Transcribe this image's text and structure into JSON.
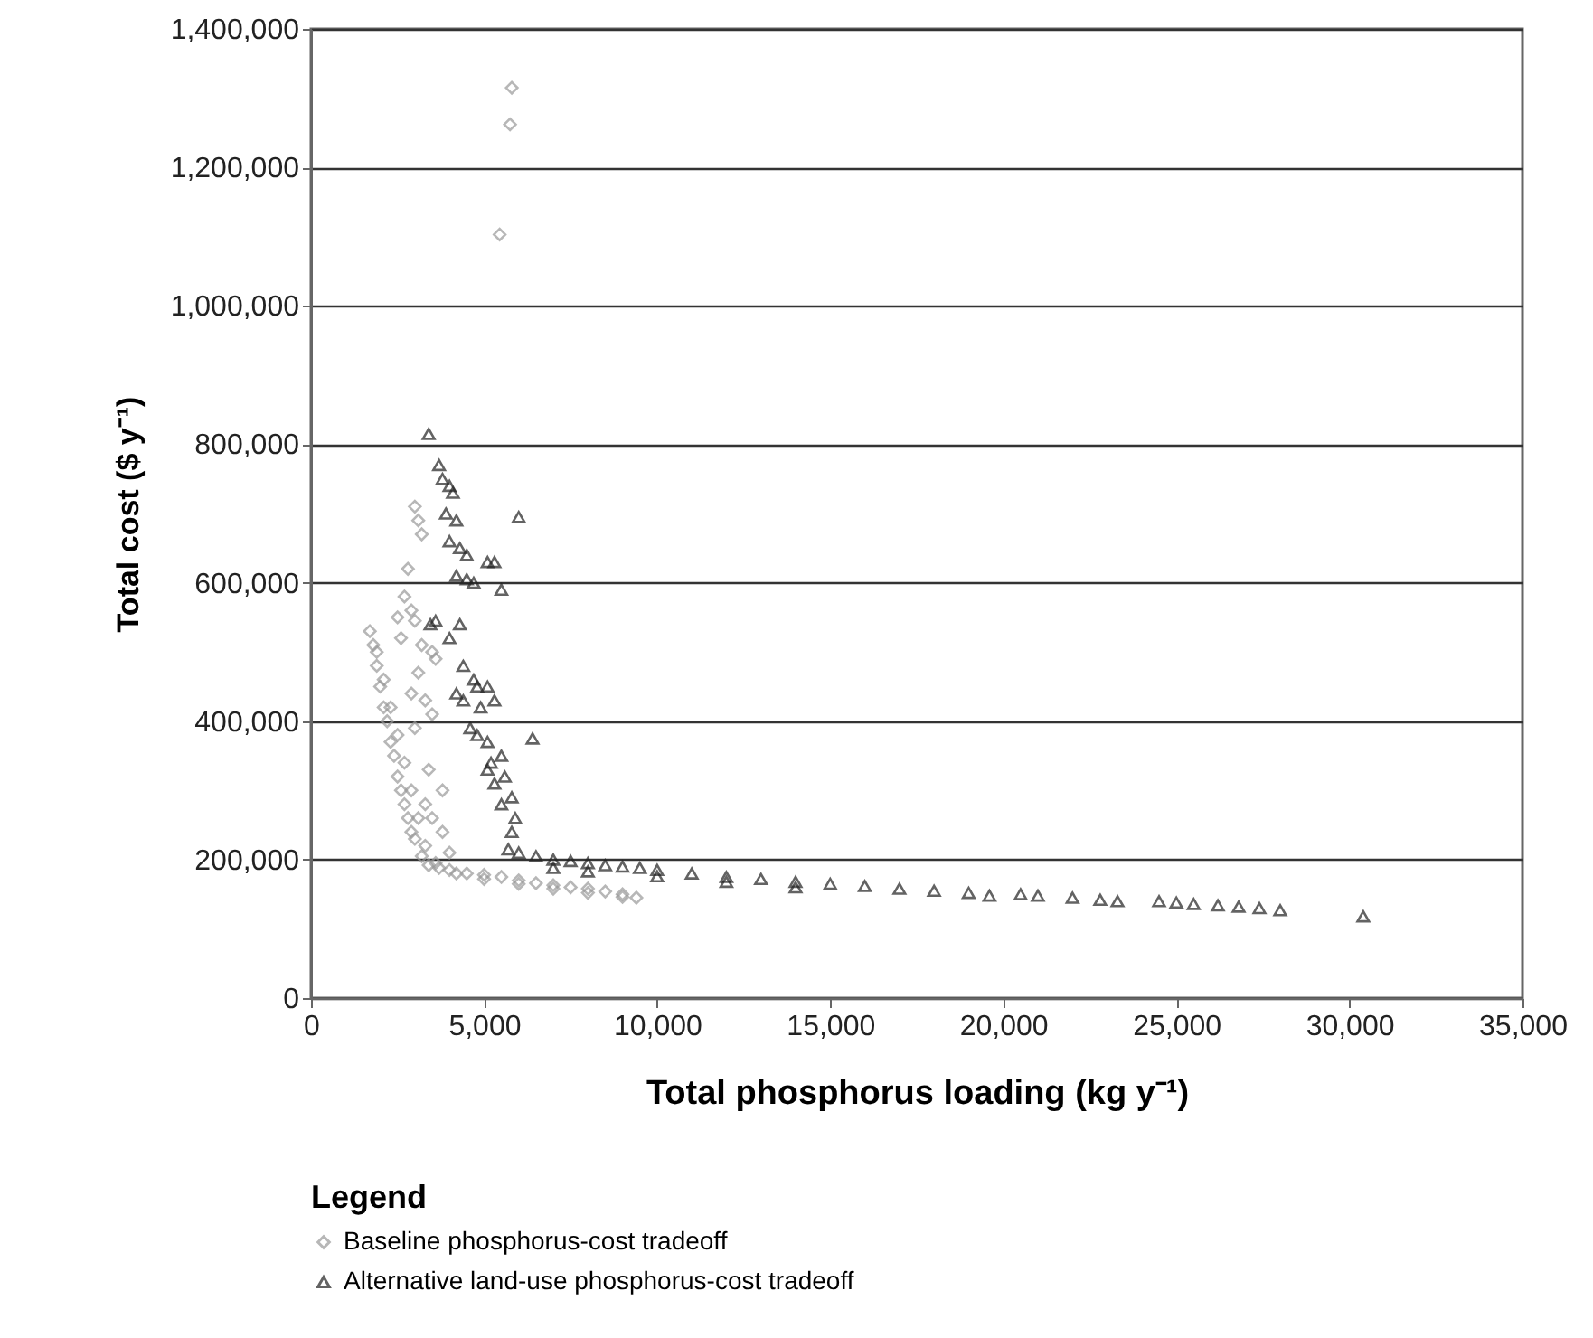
{
  "chart_data": {
    "type": "scatter",
    "xlabel": "Total phosphorus loading (kg y⁻¹)",
    "ylabel": "Total cost ($ y⁻¹)",
    "legend_title": "Legend",
    "legend": "bottom",
    "grid": "y",
    "xlim": [
      0,
      35000
    ],
    "xticks": [
      0,
      {
        "value": 5000,
        "label": "5,000"
      },
      {
        "value": 10000,
        "label": "10,000"
      },
      {
        "value": 15000,
        "label": "15,000"
      },
      {
        "value": 20000,
        "label": "20,000"
      },
      {
        "value": 25000,
        "label": "25,000"
      },
      {
        "value": 30000,
        "label": "30,000"
      },
      {
        "value": 35000,
        "label": "35,000"
      }
    ],
    "ylim": [
      0,
      1400000
    ],
    "yticks": [
      0,
      {
        "value": 200000,
        "label": "200,000"
      },
      {
        "value": 400000,
        "label": "400,000"
      },
      {
        "value": 600000,
        "label": "600,000"
      },
      {
        "value": 800000,
        "label": "800,000"
      },
      {
        "value": 1000000,
        "label": "1,000,000"
      },
      {
        "value": 1200000,
        "label": "1,200,000"
      },
      {
        "value": 1400000,
        "label": "1,400,000"
      }
    ],
    "series": [
      {
        "name": "Baseline phosphorus-cost tradeoff",
        "color": "#999999",
        "marker": "diamond",
        "x": [
          5800,
          5750,
          5450,
          1700,
          1800,
          1900,
          2000,
          2100,
          2200,
          2300,
          2400,
          2500,
          2600,
          2700,
          2800,
          2900,
          3000,
          3200,
          3400,
          3700,
          4000,
          4500,
          5000,
          5500,
          6000,
          6500,
          7000,
          7500,
          8000,
          8500,
          9000,
          9400,
          1900,
          2100,
          2300,
          2500,
          2700,
          2900,
          3100,
          3300,
          3600,
          4200,
          5000,
          6000,
          7000,
          8000,
          9000,
          3000,
          3100,
          3200,
          2800,
          2700,
          2900,
          2500,
          3000,
          2600,
          3200,
          3500,
          3600,
          3100,
          2900,
          3300,
          3500,
          3000,
          3400,
          3800,
          3300,
          3500,
          3800,
          4000
        ],
        "values": [
          1315000,
          1262000,
          1103000,
          530000,
          510000,
          480000,
          450000,
          420000,
          400000,
          370000,
          350000,
          320000,
          300000,
          280000,
          260000,
          240000,
          230000,
          205000,
          192000,
          188000,
          185000,
          180000,
          178000,
          175000,
          170000,
          166000,
          163000,
          160000,
          158000,
          154000,
          150000,
          145000,
          500000,
          460000,
          420000,
          380000,
          340000,
          300000,
          260000,
          220000,
          195000,
          180000,
          172000,
          165000,
          158000,
          152000,
          146000,
          710000,
          690000,
          670000,
          620000,
          580000,
          560000,
          550000,
          545000,
          520000,
          510000,
          500000,
          490000,
          470000,
          440000,
          430000,
          410000,
          390000,
          330000,
          300000,
          280000,
          260000,
          240000,
          210000
        ]
      },
      {
        "name": "Alternative land-use phosphorus-cost tradeoff",
        "color": "#222222",
        "marker": "triangle",
        "x": [
          3400,
          3700,
          3800,
          4000,
          4100,
          3900,
          4200,
          4000,
          4300,
          4500,
          6000,
          4200,
          4500,
          4700,
          5100,
          5300,
          5500,
          3600,
          3450,
          4300,
          4000,
          4700,
          4800,
          5100,
          4400,
          4200,
          4400,
          4900,
          5300,
          6400,
          4600,
          4800,
          5100,
          5200,
          5500,
          5100,
          5600,
          5300,
          5800,
          5500,
          5900,
          5800,
          5700,
          6000,
          6500,
          7000,
          7500,
          8000,
          8500,
          9000,
          9500,
          10000,
          11000,
          12000,
          13000,
          14000,
          15000,
          16000,
          17000,
          18000,
          19000,
          19600,
          20500,
          21000,
          22000,
          22800,
          23300,
          24500,
          25000,
          25500,
          26200,
          26800,
          27400,
          28000,
          30400,
          7000,
          8000,
          10000,
          12000,
          14000
        ],
        "values": [
          815000,
          770000,
          750000,
          740000,
          730000,
          700000,
          690000,
          660000,
          650000,
          640000,
          695000,
          610000,
          605000,
          600000,
          630000,
          630000,
          590000,
          545000,
          540000,
          540000,
          520000,
          460000,
          450000,
          450000,
          480000,
          440000,
          430000,
          420000,
          430000,
          375000,
          390000,
          380000,
          370000,
          340000,
          350000,
          330000,
          320000,
          310000,
          290000,
          280000,
          260000,
          240000,
          215000,
          210000,
          205000,
          200000,
          198000,
          195000,
          192000,
          190000,
          188000,
          185000,
          180000,
          175000,
          172000,
          168000,
          165000,
          162000,
          158000,
          155000,
          152000,
          148000,
          150000,
          148000,
          145000,
          142000,
          140000,
          140000,
          138000,
          136000,
          134000,
          132000,
          130000,
          127000,
          118000,
          188000,
          183000,
          176000,
          168000,
          160000
        ]
      }
    ]
  }
}
